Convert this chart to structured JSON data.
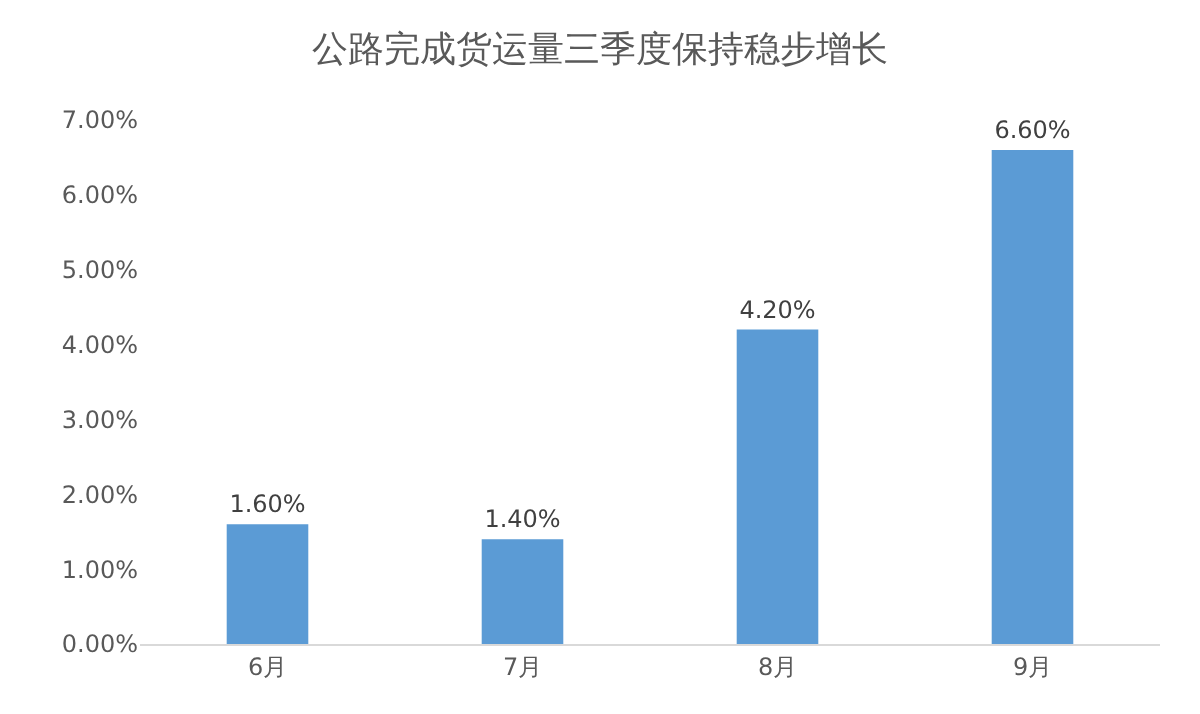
{
  "chart_data": {
    "type": "bar",
    "title": "公路完成货运量三季度保持稳步增长",
    "categories": [
      "6月",
      "7月",
      "8月",
      "9月"
    ],
    "values": [
      1.6,
      1.4,
      4.2,
      6.6
    ],
    "value_labels": [
      "1.60%",
      "1.40%",
      "4.20%",
      "6.60%"
    ],
    "color": "#5b9bd5",
    "ylim": [
      0,
      7
    ],
    "yticks": [
      {
        "value": 0,
        "label": "0.00%"
      },
      {
        "value": 1,
        "label": "1.00%"
      },
      {
        "value": 2,
        "label": "2.00%"
      },
      {
        "value": 3,
        "label": "3.00%"
      },
      {
        "value": 4,
        "label": "4.00%"
      },
      {
        "value": 5,
        "label": "5.00%"
      },
      {
        "value": 6,
        "label": "6.00%"
      },
      {
        "value": 7,
        "label": "7.00%"
      }
    ],
    "grid": false,
    "legend": false
  }
}
